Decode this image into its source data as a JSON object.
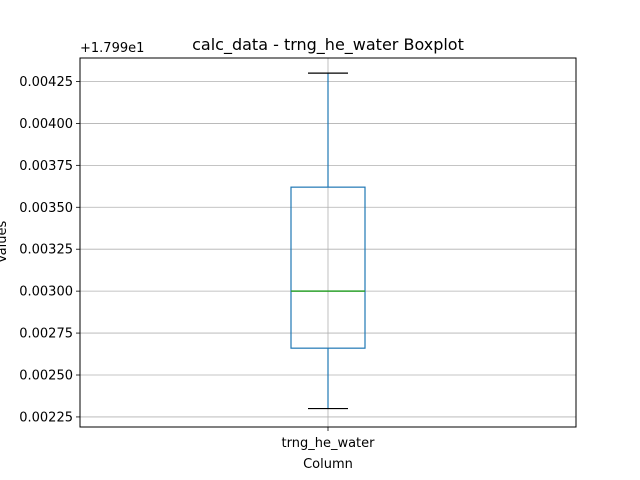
{
  "chart_data": {
    "type": "box",
    "title": "calc_data - trng_he_water Boxplot",
    "xlabel": "Column",
    "ylabel": "Values",
    "offset_text": "+1.799e1",
    "categories": [
      "trng_he_water"
    ],
    "boxes": [
      {
        "name": "trng_he_water",
        "whisker_low": 0.0023,
        "q1": 0.00266,
        "median": 0.003,
        "q3": 0.00362,
        "whisker_high": 0.0043
      }
    ],
    "ylim": [
      0.00219,
      0.00439
    ],
    "yticks": [
      0.00225,
      0.0025,
      0.00275,
      0.003,
      0.00325,
      0.0035,
      0.00375,
      0.004,
      0.00425
    ],
    "ytick_labels": [
      "0.00225",
      "0.00250",
      "0.00275",
      "0.00300",
      "0.00325",
      "0.00350",
      "0.00375",
      "0.00400",
      "0.00425"
    ],
    "grid": true,
    "colors": {
      "box": "#1f77b4",
      "median": "#2ca02c",
      "whisker": "#1f77b4",
      "cap": "#000000",
      "grid": "#b0b0b0"
    }
  }
}
